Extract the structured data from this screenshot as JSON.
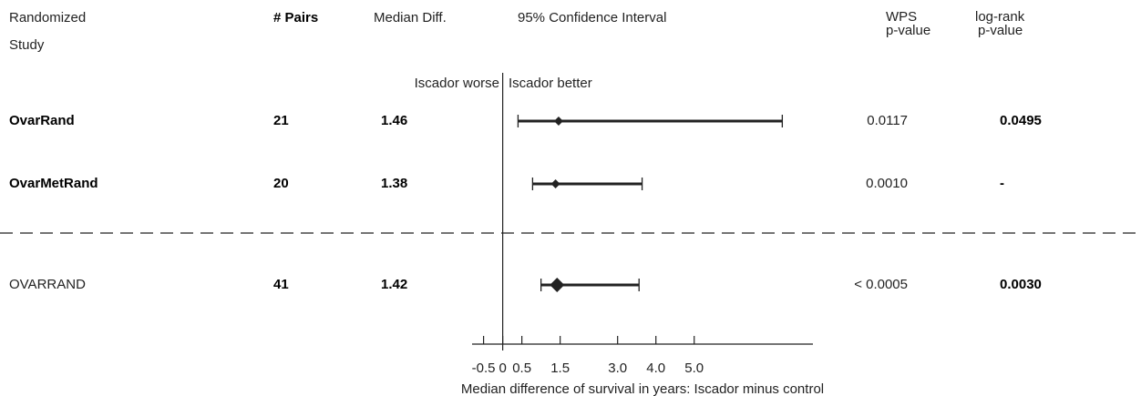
{
  "chart_data": {
    "type": "forest",
    "headers": {
      "study": [
        "Randomized",
        "Study"
      ],
      "pairs": "# Pairs",
      "median": "Median Diff.",
      "ci": "95% Confidence Interval",
      "wps": [
        "WPS",
        "p-value"
      ],
      "logrank": [
        "log-rank",
        "p-value"
      ]
    },
    "left_label": "Iscador worse",
    "right_label": "Iscador better",
    "xlabel": "Median difference of survival in years: Iscador minus control",
    "xlim": [
      -0.8,
      8.1
    ],
    "xticks": [
      -0.5,
      0,
      0.5,
      1.5,
      {
        "value": 3,
        "label": "3.0"
      },
      {
        "value": 4,
        "label": "4.0"
      },
      {
        "value": 5,
        "label": "5.0"
      }
    ],
    "rows": [
      {
        "study": "OvarRand",
        "pairs": 21,
        "median": 1.46,
        "ci": [
          0.4,
          7.3
        ],
        "wps": "0.0117",
        "logrank": "0.0495"
      },
      {
        "study": "OvarMetRand",
        "pairs": 20,
        "median": 1.38,
        "ci": [
          0.78,
          3.64
        ],
        "wps": "0.0010",
        "logrank": "-"
      },
      {
        "study": "OVARRAND",
        "pairs": 41,
        "median": 1.42,
        "ci": [
          1.0,
          3.56
        ],
        "wps": "< 0.0005",
        "logrank": "0.0030"
      }
    ]
  }
}
